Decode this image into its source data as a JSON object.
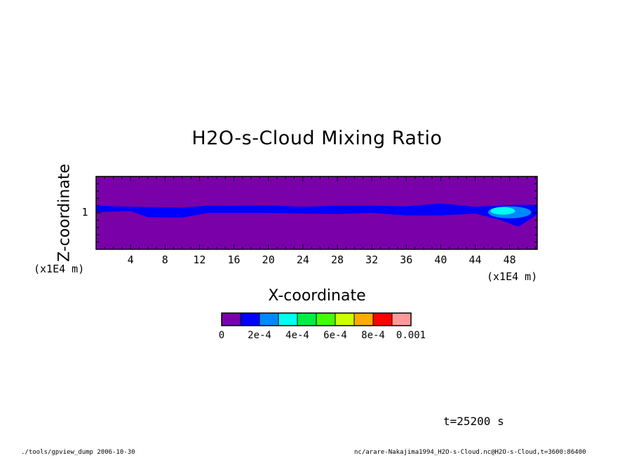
{
  "chart_data": {
    "type": "heatmap",
    "title": "H2O-s-Cloud Mixing Ratio",
    "xlabel": "X-coordinate",
    "ylabel": "Z-coordinate",
    "x_unit": "(x1E4 m)",
    "y_unit": "(x1E4 m)",
    "xlim": [
      0,
      51.2
    ],
    "ylim": [
      0,
      2
    ],
    "x_ticks": [
      4,
      8,
      12,
      16,
      20,
      24,
      28,
      32,
      36,
      40,
      44,
      48
    ],
    "x_tick_labels": [
      "4",
      "8",
      "12",
      "16",
      "20",
      "24",
      "28",
      "32",
      "36",
      "40",
      "44",
      "48"
    ],
    "y_ticks": [
      1
    ],
    "y_tick_labels": [
      "1"
    ],
    "colorbar": {
      "levels": [
        0,
        0.0001,
        0.0002,
        0.0003,
        0.0004,
        0.0005,
        0.0006,
        0.0007,
        0.0008,
        0.0009,
        0.001
      ],
      "tick_values": [
        0,
        0.0002,
        0.0004,
        0.0006,
        0.0008,
        0.001
      ],
      "tick_labels": [
        "0",
        "2e-4",
        "4e-4",
        "6e-4",
        "8e-4",
        "0.001"
      ],
      "colors": [
        "#7a00aa",
        "#0000ff",
        "#0088ff",
        "#00ffee",
        "#00ee44",
        "#44ff00",
        "#ccff00",
        "#ffaa00",
        "#ff0000",
        "#ff9999"
      ]
    },
    "cloud_layer": {
      "description_level_band": "2e-4 band near z=1",
      "band": [
        {
          "x": 0,
          "z_bottom": 1.02,
          "z_top": 1.2
        },
        {
          "x": 4,
          "z_bottom": 1.05,
          "z_top": 1.17
        },
        {
          "x": 6,
          "z_bottom": 0.88,
          "z_top": 1.16
        },
        {
          "x": 10,
          "z_bottom": 0.87,
          "z_top": 1.15
        },
        {
          "x": 13,
          "z_bottom": 1.0,
          "z_top": 1.2
        },
        {
          "x": 16,
          "z_bottom": 1.0,
          "z_top": 1.2
        },
        {
          "x": 20,
          "z_bottom": 1.0,
          "z_top": 1.21
        },
        {
          "x": 24,
          "z_bottom": 0.98,
          "z_top": 1.17
        },
        {
          "x": 28,
          "z_bottom": 0.97,
          "z_top": 1.2
        },
        {
          "x": 32,
          "z_bottom": 1.0,
          "z_top": 1.2
        },
        {
          "x": 36,
          "z_bottom": 0.93,
          "z_top": 1.18
        },
        {
          "x": 40,
          "z_bottom": 0.93,
          "z_top": 1.26
        },
        {
          "x": 44,
          "z_bottom": 0.98,
          "z_top": 1.17
        },
        {
          "x": 47,
          "z_bottom": 0.8,
          "z_top": 1.2
        },
        {
          "x": 49,
          "z_bottom": 0.62,
          "z_top": 1.22
        },
        {
          "x": 51.2,
          "z_bottom": 0.95,
          "z_top": 1.22
        }
      ],
      "high_region": {
        "level": "3e-4 to 4e-4",
        "x_range": [
          45.5,
          50.5
        ],
        "z_range": [
          0.85,
          1.18
        ]
      }
    }
  },
  "annotations": {
    "time": "t=25200 s",
    "footer_left": "./tools/gpview_dump  2006-10-30",
    "footer_right": "nc/arare-Nakajima1994_H2O-s-Cloud.nc@H2O-s-Cloud,t=3600:86400"
  }
}
